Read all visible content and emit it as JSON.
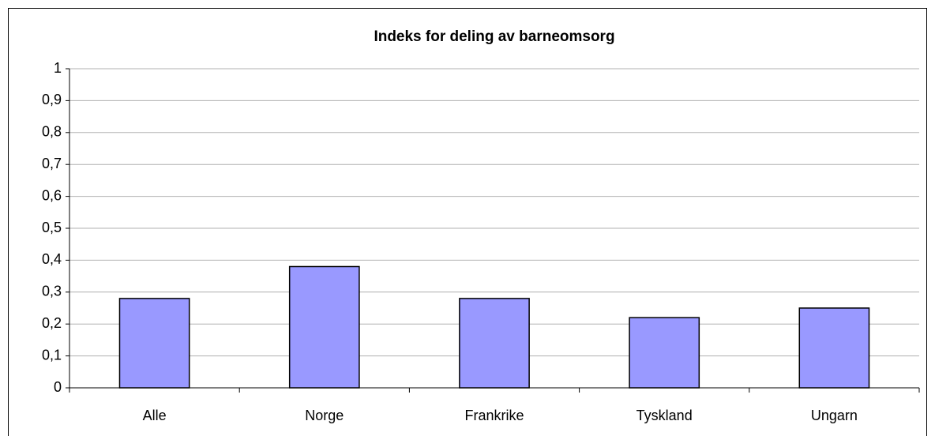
{
  "chart_data": {
    "type": "bar",
    "title": "Indeks for deling av barneomsorg",
    "categories": [
      "Alle",
      "Norge",
      "Frankrike",
      "Tyskland",
      "Ungarn"
    ],
    "values": [
      0.28,
      0.38,
      0.28,
      0.22,
      0.25
    ],
    "color": "#9999ff",
    "ylim": [
      0,
      1
    ],
    "yticks": [
      0,
      {
        "value": 0.1,
        "label": "0,1"
      },
      {
        "value": 0.2,
        "label": "0,2"
      },
      {
        "value": 0.3,
        "label": "0,3"
      },
      {
        "value": 0.4,
        "label": "0,4"
      },
      {
        "value": 0.5,
        "label": "0,5"
      },
      {
        "value": 0.6,
        "label": "0,6"
      },
      {
        "value": 0.7,
        "label": "0,7"
      },
      {
        "value": 0.8,
        "label": "0,8"
      },
      {
        "value": 0.9,
        "label": "0,9"
      },
      1
    ],
    "grid": true
  }
}
